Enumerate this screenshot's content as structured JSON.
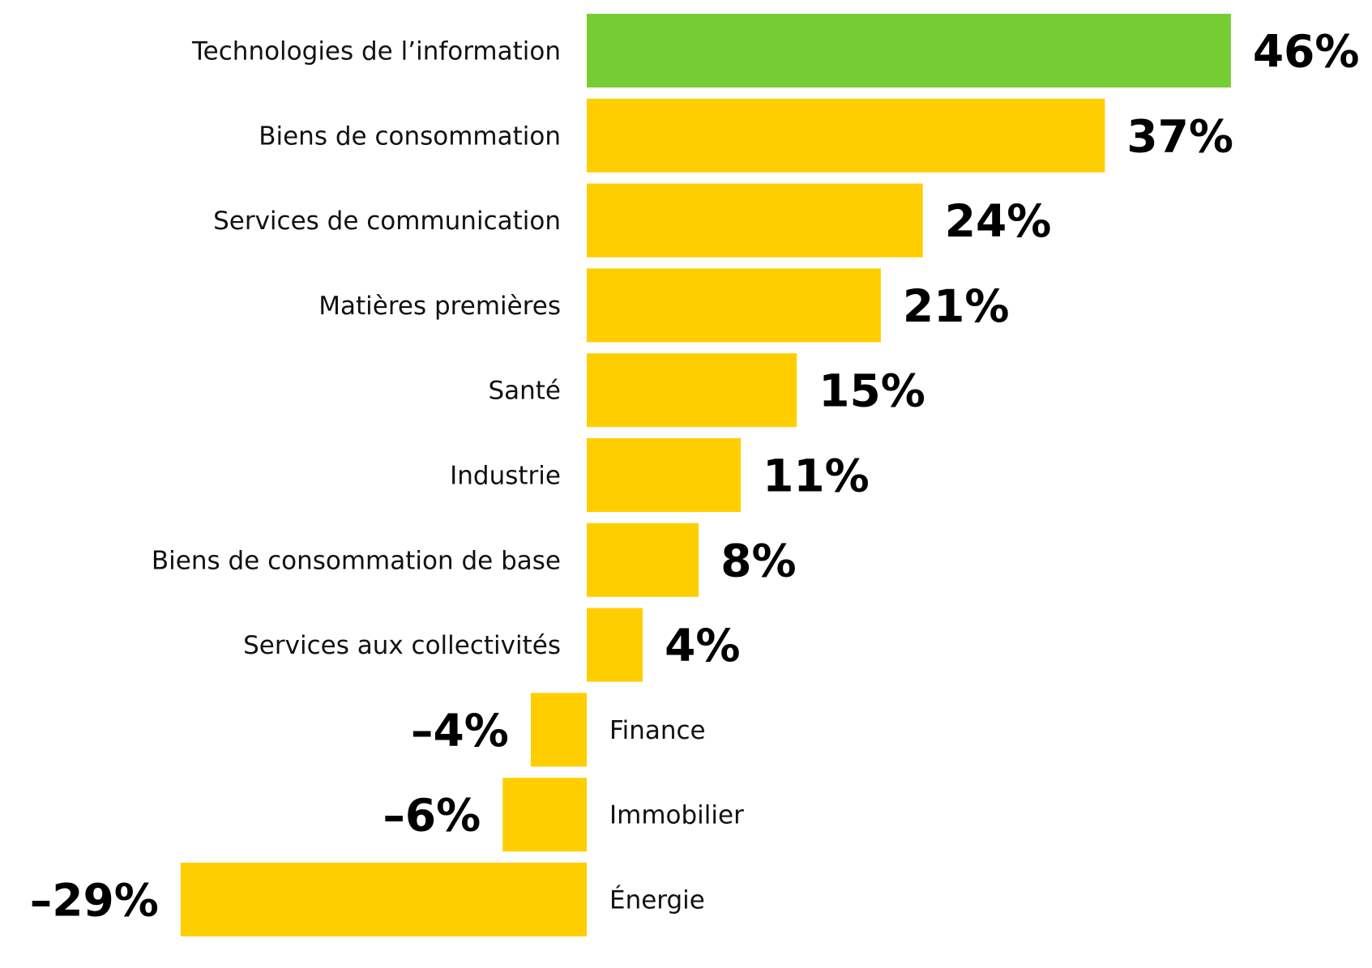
{
  "chart_data": {
    "type": "bar",
    "orientation": "horizontal",
    "categories": [
      "Technologies de l’information",
      "Biens de consommation",
      "Services de communication",
      "Matières premières",
      "Santé",
      "Industrie",
      "Biens de consommation de base",
      "Services aux collectivités",
      "Finance",
      "Immobilier",
      "Énergie"
    ],
    "values": [
      46,
      37,
      24,
      21,
      15,
      11,
      8,
      4,
      -4,
      -6,
      -29
    ],
    "value_labels": [
      "46%",
      "37%",
      "24%",
      "21%",
      "15%",
      "11%",
      "8%",
      "4%",
      "–4%",
      "–6%",
      "–29%"
    ],
    "unit": "%",
    "highlight_index": 0,
    "colors": {
      "highlight": "#76CD33",
      "default": "#FFCE00",
      "text": "#000000"
    },
    "xlim": [
      -29,
      46
    ],
    "grid": false,
    "legend": "none"
  }
}
